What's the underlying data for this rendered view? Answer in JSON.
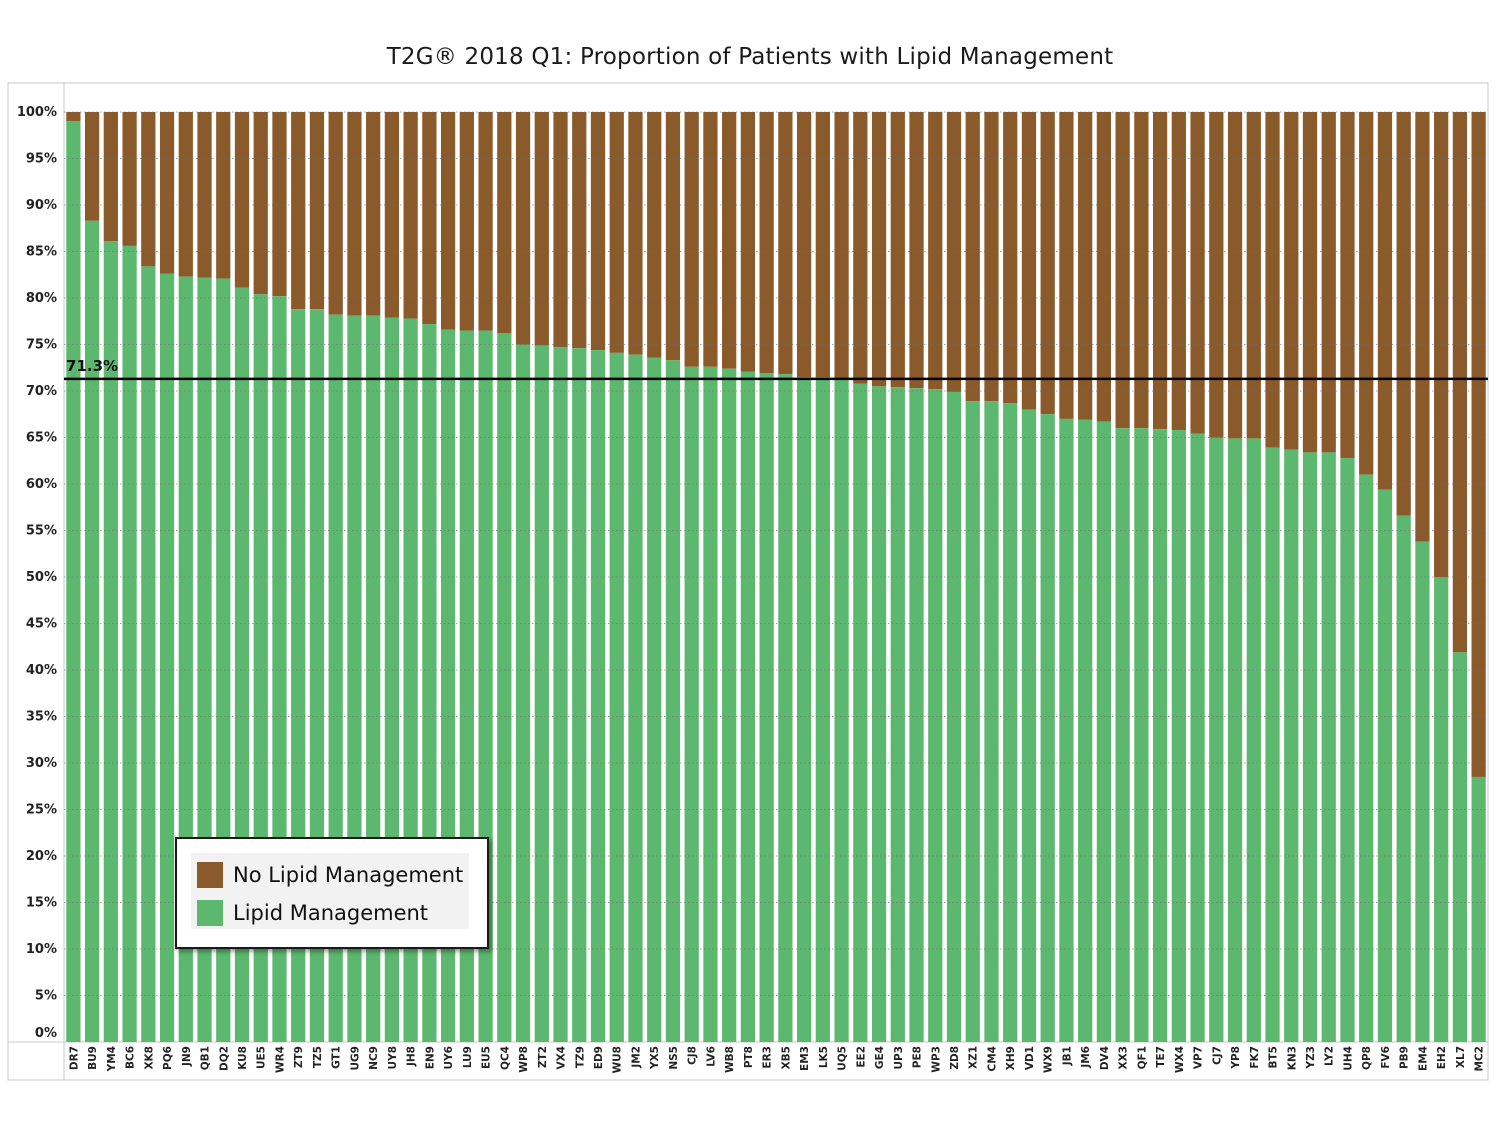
{
  "chart_data": {
    "type": "bar",
    "stacked": true,
    "title": "T2G® 2018 Q1: Proportion of Patients with Lipid Management",
    "xlabel": "",
    "ylabel": "",
    "ylim": [
      0,
      100
    ],
    "y_ticks": [
      "0%",
      "5%",
      "10%",
      "15%",
      "20%",
      "25%",
      "30%",
      "35%",
      "40%",
      "45%",
      "50%",
      "55%",
      "60%",
      "65%",
      "70%",
      "75%",
      "80%",
      "85%",
      "90%",
      "95%",
      "100%"
    ],
    "grid": true,
    "legend_position": "bottom-left",
    "reference_line": {
      "value": 71.3,
      "label": "71.3%"
    },
    "categories": [
      "DR7",
      "BU9",
      "YM4",
      "BC6",
      "XK8",
      "PQ6",
      "JN9",
      "QB1",
      "DQ2",
      "KU8",
      "UE5",
      "WR4",
      "ZT9",
      "TZ5",
      "GT1",
      "UG9",
      "NC9",
      "UY8",
      "JH8",
      "EN9",
      "UY6",
      "LU9",
      "EU5",
      "QC4",
      "WP8",
      "ZT2",
      "VX4",
      "TZ9",
      "ED9",
      "WU8",
      "JM2",
      "YX5",
      "NS5",
      "CJ8",
      "LV6",
      "WB8",
      "PT8",
      "ER3",
      "XB5",
      "EM3",
      "LK5",
      "UQ5",
      "EE2",
      "GE4",
      "UP3",
      "PE8",
      "WP3",
      "ZD8",
      "XZ1",
      "CM4",
      "XH9",
      "VD1",
      "WX9",
      "JB1",
      "JM6",
      "DV4",
      "XX3",
      "QF1",
      "TE7",
      "WX4",
      "VP7",
      "CJ7",
      "YP8",
      "FK7",
      "BT5",
      "KN3",
      "YZ3",
      "LY2",
      "UH4",
      "QP8",
      "FV6",
      "PB9",
      "EM4",
      "EH2",
      "XL7",
      "MC2"
    ],
    "series": [
      {
        "name": "Lipid Management",
        "color": "#5cb86f",
        "values": [
          99.0,
          88.3,
          86.1,
          85.6,
          83.4,
          82.6,
          82.3,
          82.2,
          82.1,
          81.1,
          80.4,
          80.2,
          78.8,
          78.8,
          78.2,
          78.1,
          78.1,
          77.9,
          77.8,
          77.2,
          76.6,
          76.5,
          76.5,
          76.2,
          75.0,
          74.9,
          74.7,
          74.6,
          74.4,
          74.1,
          73.9,
          73.6,
          73.3,
          72.6,
          72.6,
          72.4,
          72.1,
          71.9,
          71.8,
          71.5,
          71.5,
          71.2,
          70.8,
          70.5,
          70.4,
          70.3,
          70.2,
          69.9,
          68.9,
          68.9,
          68.7,
          68.0,
          67.5,
          67.0,
          66.9,
          66.7,
          66.0,
          66.0,
          65.9,
          65.8,
          65.4,
          65.0,
          64.9,
          64.9,
          63.9,
          63.7,
          63.4,
          63.4,
          62.8,
          61.0,
          59.4,
          56.6,
          53.8,
          50.0,
          41.9,
          28.5
        ]
      },
      {
        "name": "No Lipid Management",
        "color": "#8b5a2b",
        "values": [
          1.0,
          11.7,
          13.9,
          14.4,
          16.6,
          17.4,
          17.7,
          17.8,
          17.9,
          18.9,
          19.6,
          19.8,
          21.2,
          21.2,
          21.8,
          21.9,
          21.9,
          22.1,
          22.2,
          22.8,
          23.4,
          23.5,
          23.5,
          23.8,
          25.0,
          25.1,
          25.3,
          25.4,
          25.6,
          25.9,
          26.1,
          26.4,
          26.7,
          27.4,
          27.4,
          27.6,
          27.9,
          28.1,
          28.2,
          28.5,
          28.5,
          28.8,
          29.2,
          29.5,
          29.6,
          29.7,
          29.8,
          30.1,
          31.1,
          31.1,
          31.3,
          32.0,
          32.5,
          33.0,
          33.1,
          33.3,
          34.0,
          34.0,
          34.1,
          34.2,
          34.6,
          35.0,
          35.1,
          35.1,
          36.1,
          36.3,
          36.6,
          36.6,
          37.2,
          39.0,
          40.6,
          43.4,
          46.2,
          50.0,
          58.1,
          71.5
        ]
      }
    ]
  },
  "legend": {
    "items": [
      {
        "label": "No Lipid Management",
        "color": "#8b5a2b"
      },
      {
        "label": "Lipid Management",
        "color": "#5cb86f"
      }
    ]
  }
}
